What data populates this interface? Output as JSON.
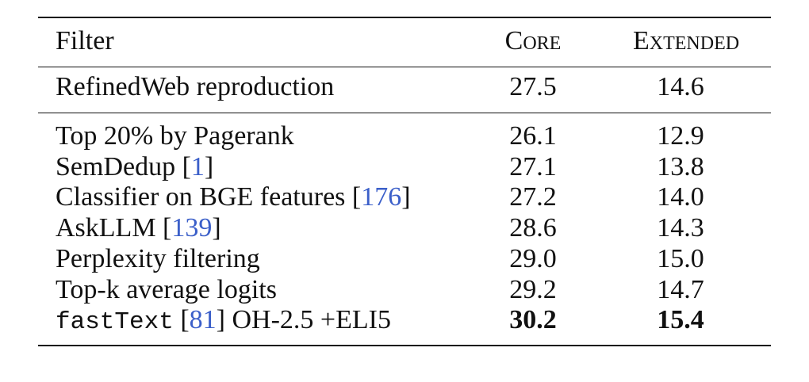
{
  "table": {
    "header": [
      "Filter",
      "Core",
      "Extended"
    ],
    "header_style": {
      "small_caps": [
        1,
        2
      ]
    },
    "groups": [
      [
        {
          "filter": [
            "RefinedWeb reproduction"
          ],
          "core": "27.5",
          "extended": "14.6"
        }
      ],
      [
        {
          "filter": [
            "Top 20% by Pagerank"
          ],
          "core": "26.1",
          "extended": "12.9"
        },
        {
          "filter": [
            "SemDedup [",
            {
              "text": "1",
              "color": "#3b5fc9"
            },
            "]"
          ],
          "core": "27.1",
          "extended": "13.8"
        },
        {
          "filter": [
            "Classifier on BGE features [",
            {
              "text": "176",
              "color": "#3b5fc9"
            },
            "]"
          ],
          "core": "27.2",
          "extended": "14.0"
        },
        {
          "filter": [
            "AskLLM [",
            {
              "text": "139",
              "color": "#3b5fc9"
            },
            "]"
          ],
          "core": "28.6",
          "extended": "14.3"
        },
        {
          "filter": [
            "Perplexity filtering"
          ],
          "core": "29.0",
          "extended": "15.0"
        },
        {
          "filter": [
            "Top-k average logits"
          ],
          "core": "29.2",
          "extended": "14.7"
        },
        {
          "filter": [
            {
              "text": "fastText",
              "font": "monospace"
            },
            " [",
            {
              "text": "81",
              "color": "#3b5fc9"
            },
            "] OH-2.5 +ELI5"
          ],
          "core": "30.2",
          "extended": "15.4",
          "bold": true
        }
      ]
    ]
  }
}
